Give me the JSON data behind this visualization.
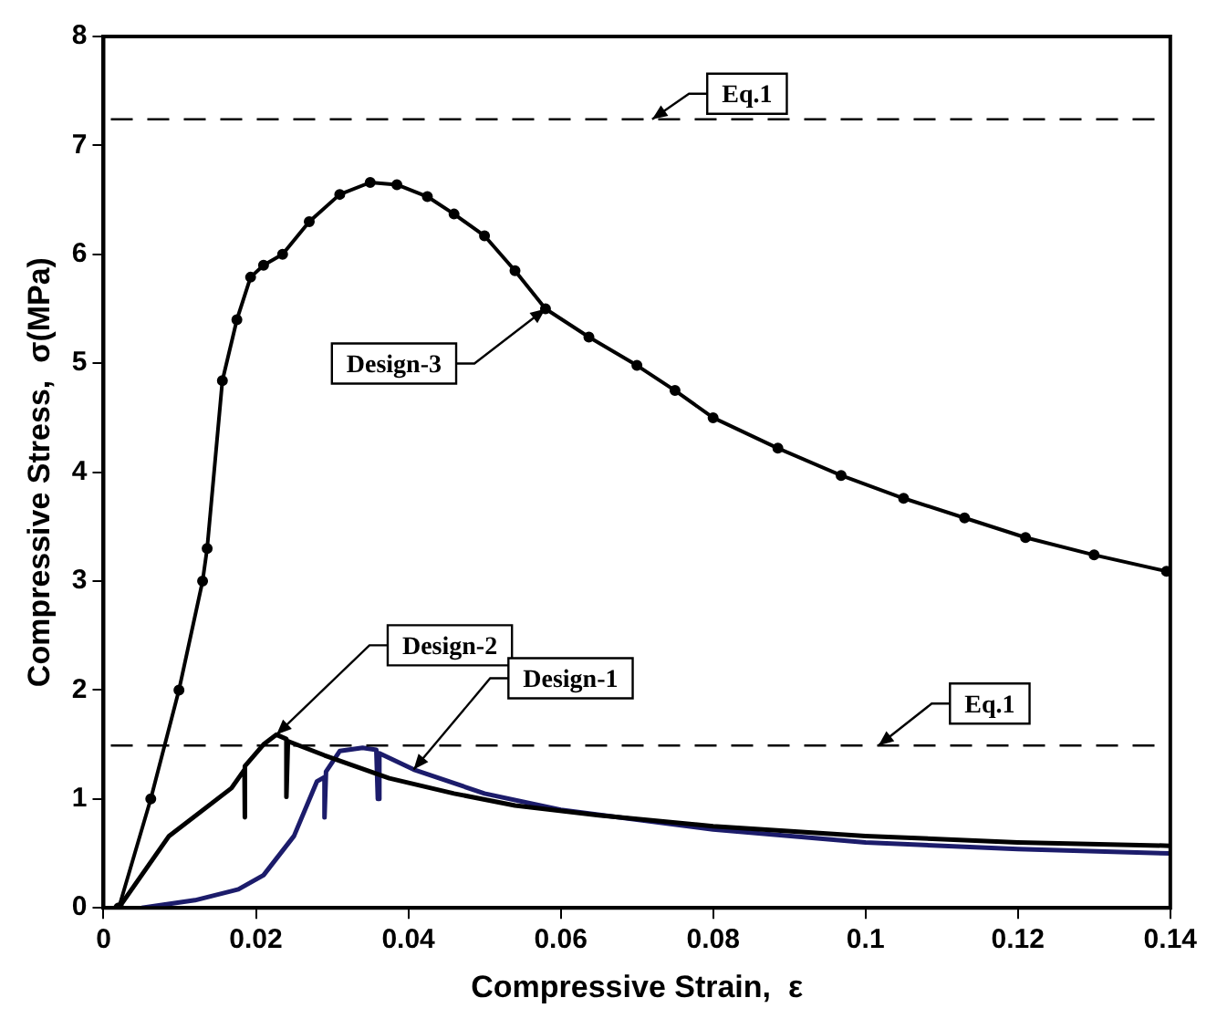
{
  "chart_data": {
    "type": "line",
    "xlabel": "Compressive Strain,  ε",
    "ylabel": "Compressive Stress,  σ(MPa)",
    "xlim": [
      0,
      0.14
    ],
    "xticks": [
      0,
      0.02,
      0.04,
      0.06,
      0.08,
      0.1,
      0.12,
      0.14
    ],
    "ylim": [
      0,
      8
    ],
    "yticks": [
      0,
      1,
      2,
      3,
      4,
      5,
      6,
      7,
      8
    ],
    "grid": false,
    "legend": false,
    "series": [
      {
        "color": "#000000",
        "marker": "circle",
        "x": [
          0.002,
          0.0062,
          0.0099,
          0.013,
          0.0136,
          0.0156,
          0.0175,
          0.0193,
          0.021,
          0.0235,
          0.027,
          0.031,
          0.035,
          0.0385,
          0.0425,
          0.046,
          0.05,
          0.054,
          0.058,
          0.0637,
          0.07,
          0.075,
          0.08,
          0.0885,
          0.0968,
          0.105,
          0.113,
          0.121,
          0.13,
          0.1395
        ],
        "values": [
          0,
          1,
          2,
          3,
          3.3,
          4.84,
          5.4,
          5.79,
          5.9,
          6.0,
          6.3,
          6.55,
          6.66,
          6.64,
          6.53,
          6.37,
          6.17,
          5.85,
          5.5,
          5.24,
          4.98,
          4.75,
          4.5,
          4.22,
          3.97,
          3.76,
          3.58,
          3.4,
          3.24,
          3.09
        ]
      },
      {
        "color": "#000000",
        "marker": "none",
        "x": [
          0.002,
          0.0086,
          0.0168,
          0.0185,
          0.0185,
          0.0186,
          0.021,
          0.0227,
          0.024,
          0.024,
          0.0242,
          0.029,
          0.0375,
          0.046,
          0.054,
          0.065,
          0.08,
          0.1,
          0.12,
          0.14
        ],
        "values": [
          0,
          0.66,
          1.1,
          1.27,
          0.83,
          1.3,
          1.5,
          1.59,
          1.55,
          1.02,
          1.53,
          1.4,
          1.19,
          1.05,
          0.94,
          0.85,
          0.75,
          0.66,
          0.6,
          0.57
        ]
      },
      {
        "color": "#1c1c6b",
        "marker": "none",
        "x": [
          0.005,
          0.012,
          0.0177,
          0.021,
          0.025,
          0.028,
          0.029,
          0.029,
          0.0292,
          0.031,
          0.034,
          0.0358,
          0.036,
          0.0362,
          0.0407,
          0.05,
          0.06,
          0.08,
          0.1,
          0.12,
          0.14
        ],
        "values": [
          0,
          0.07,
          0.17,
          0.3,
          0.66,
          1.16,
          1.2,
          0.83,
          1.25,
          1.44,
          1.47,
          1.45,
          1.0,
          1.42,
          1.27,
          1.05,
          0.9,
          0.72,
          0.6,
          0.54,
          0.5
        ]
      }
    ],
    "ref_lines": [
      {
        "axis": "y",
        "value": 7.24,
        "color": "#000000",
        "line_style": "dashed"
      },
      {
        "axis": "y",
        "value": 1.49,
        "color": "#000000",
        "line_style": "dashed"
      }
    ],
    "annotations": [
      {
        "text": "Eq.1",
        "x": 0.072,
        "y": 7.24
      },
      {
        "text": "Design-3",
        "x": 0.058,
        "y": 5.5
      },
      {
        "text": "Design-2",
        "x": 0.0227,
        "y": 1.59
      },
      {
        "text": "Design-1",
        "x": 0.0407,
        "y": 1.27
      },
      {
        "text": "Eq.1",
        "x": 0.1017,
        "y": 1.49
      }
    ]
  }
}
